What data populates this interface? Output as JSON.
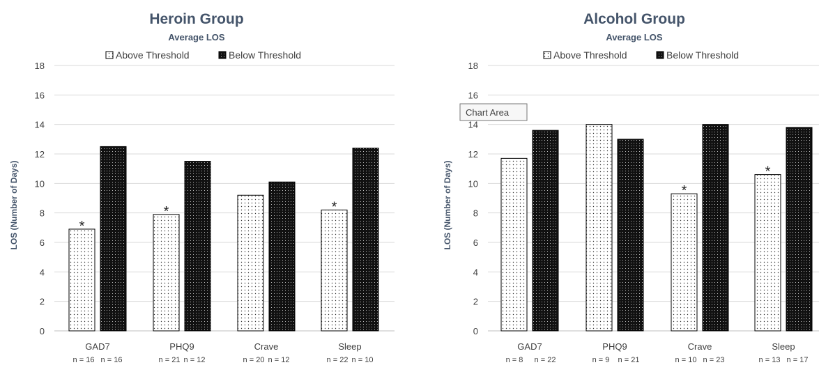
{
  "chart_data": [
    {
      "type": "bar",
      "title": "Heroin Group",
      "subtitle": "Average LOS",
      "ylabel": "LOS (Number of Days)",
      "xlabel": "",
      "ylim": [
        0,
        18
      ],
      "yticks": [
        0,
        2,
        4,
        6,
        8,
        10,
        12,
        14,
        16,
        18
      ],
      "grid": true,
      "legend_position": "top",
      "categories": [
        "GAD7",
        "PHQ9",
        "Crave",
        "Sleep"
      ],
      "series": [
        {
          "name": "Above Threshold",
          "pattern": "dots-on-white",
          "values": [
            6.9,
            7.9,
            9.2,
            8.2
          ]
        },
        {
          "name": "Below Threshold",
          "pattern": "dots-on-black",
          "values": [
            12.5,
            11.5,
            10.1,
            12.4
          ]
        }
      ],
      "significant": [
        true,
        true,
        false,
        true
      ],
      "significance_marker": "*",
      "n_labels": [
        [
          "n = 16",
          "n = 16"
        ],
        [
          "n = 21",
          "n = 12"
        ],
        [
          "n = 20",
          "n = 12"
        ],
        [
          "n = 22",
          "n = 10"
        ]
      ]
    },
    {
      "type": "bar",
      "title": "Alcohol Group",
      "subtitle": "Average LOS",
      "ylabel": "LOS (Number of Days)",
      "xlabel": "",
      "ylim": [
        0,
        18
      ],
      "yticks": [
        0,
        2,
        4,
        6,
        8,
        10,
        12,
        14,
        16,
        18
      ],
      "grid": true,
      "legend_position": "top",
      "categories": [
        "GAD7",
        "PHQ9",
        "Crave",
        "Sleep"
      ],
      "series": [
        {
          "name": "Above Threshold",
          "pattern": "dots-on-white",
          "values": [
            11.7,
            14.0,
            9.3,
            10.6
          ]
        },
        {
          "name": "Below Threshold",
          "pattern": "dots-on-black",
          "values": [
            13.6,
            13.0,
            14.0,
            13.8
          ]
        }
      ],
      "significant": [
        false,
        false,
        true,
        true
      ],
      "significance_marker": "*",
      "n_labels": [
        [
          "n = 8",
          "n = 22"
        ],
        [
          "n = 9",
          "n = 21"
        ],
        [
          "n = 10",
          "n = 23"
        ],
        [
          "n = 13",
          "n = 17"
        ]
      ],
      "tooltip": "Chart Area"
    }
  ],
  "colors": {
    "title": "#44546a",
    "grid": "#d9d9d9",
    "bar_outline": "#000000",
    "text": "#404040"
  }
}
